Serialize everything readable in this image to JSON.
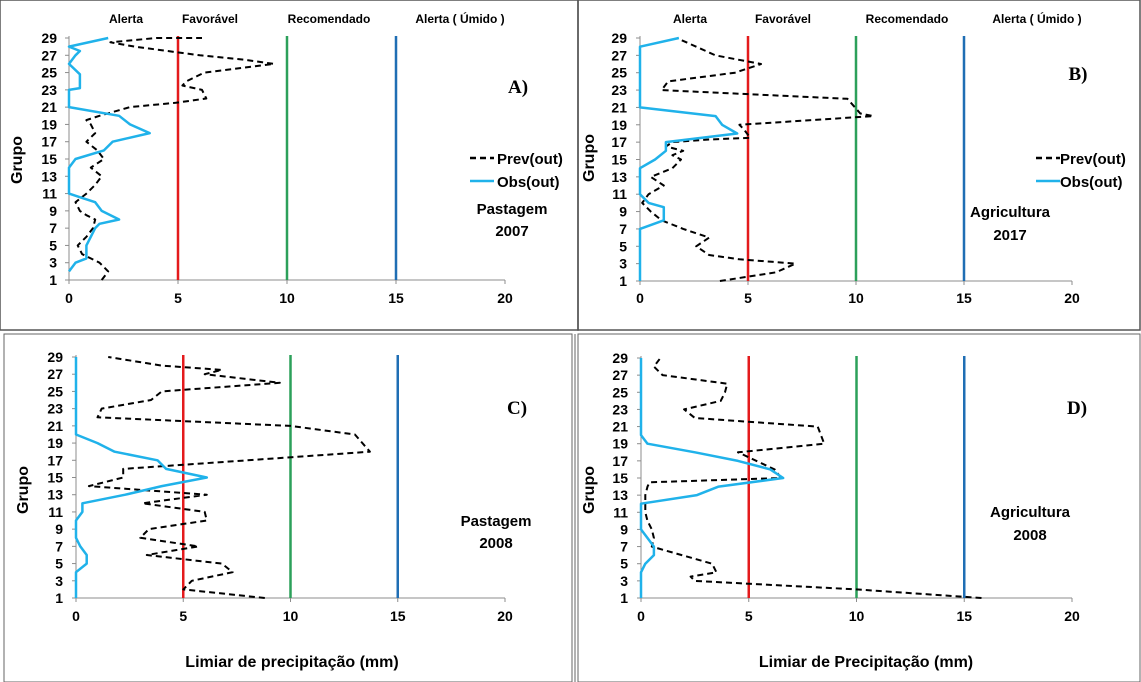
{
  "chart_data": [
    {
      "type": "line",
      "id": "A",
      "panel_label": "A)",
      "annotation": [
        "Pastagem",
        "2007"
      ],
      "ylabel": "Grupo",
      "xlim": [
        0,
        20
      ],
      "ylim": [
        1,
        29
      ],
      "x_ticks": [
        "0",
        "5",
        "10",
        "15",
        "20"
      ],
      "y_ticks": [
        "1",
        "3",
        "5",
        "7",
        "9",
        "11",
        "13",
        "15",
        "17",
        "19",
        "21",
        "23",
        "25",
        "27",
        "29"
      ],
      "thresholds": [
        {
          "label": "Alerta",
          "value": null
        },
        {
          "label": "Favorável",
          "value": 5,
          "color": "#e41a1c"
        },
        {
          "label": "Recomendado",
          "value": 10,
          "color": "#2ca05a"
        },
        {
          "label": "Alerta ( Úmido )",
          "value": 15,
          "color": "#1f6eb4"
        }
      ],
      "legend": {
        "position": "right",
        "entries": [
          "Prev(out)",
          "Obs(out)"
        ]
      },
      "series": [
        {
          "name": "Prev(out)",
          "color": "#000000",
          "dash": true,
          "x": [
            1.5,
            1.8,
            1.4,
            0.6,
            0.4,
            0.8,
            1.1,
            1.2,
            0.8,
            0.5,
            0.3,
            0.8,
            1.2,
            1.5,
            1.0,
            1.6,
            1.3,
            0.8,
            1.2,
            1.0,
            0.8,
            1.4,
            2.8,
            4.9,
            6.3,
            6.1,
            5.2,
            5.4,
            6.2,
            7.8,
            9.4,
            8.0,
            6.0,
            3.0,
            1.9,
            4.0,
            6.1
          ],
          "y": [
            1,
            2,
            3,
            4,
            5,
            6,
            7,
            8,
            8.5,
            9,
            10,
            11,
            12,
            13,
            14,
            15,
            16,
            17,
            18,
            19,
            19.5,
            20,
            21,
            21.5,
            22,
            23,
            23.5,
            24,
            25,
            25.5,
            26,
            26.5,
            27,
            28,
            28.5,
            29,
            29
          ]
        },
        {
          "name": "Obs(out)",
          "color": "#20b2ea",
          "dash": false,
          "x": [
            0,
            0.3,
            0.8,
            0.8,
            1.0,
            1.2,
            1.4,
            2.3,
            1.5,
            1.2,
            0.6,
            0,
            0,
            0,
            0.3,
            1.6,
            2.0,
            3.7,
            2.8,
            2.3,
            0,
            0,
            0.5,
            0.5,
            0,
            0.3,
            0.5,
            0,
            1.8
          ],
          "y": [
            2,
            3,
            3.5,
            5,
            6,
            7,
            7.5,
            8,
            9,
            10,
            10.5,
            11,
            13,
            14,
            15,
            16,
            17,
            18,
            19,
            20,
            21,
            23,
            23.2,
            24.8,
            26,
            27,
            27.5,
            28,
            29
          ]
        }
      ]
    },
    {
      "type": "line",
      "id": "B",
      "panel_label": "B)",
      "annotation": [
        "Agricultura",
        "2017"
      ],
      "ylabel": "Grupo",
      "xlim": [
        0,
        20
      ],
      "ylim": [
        1,
        29
      ],
      "x_ticks": [
        "0",
        "5",
        "10",
        "15",
        "20"
      ],
      "y_ticks": [
        "1",
        "3",
        "5",
        "7",
        "9",
        "11",
        "13",
        "15",
        "17",
        "19",
        "21",
        "23",
        "25",
        "27",
        "29"
      ],
      "thresholds": [
        {
          "label": "Alerta",
          "value": null
        },
        {
          "label": "Favorável",
          "value": 5,
          "color": "#e41a1c"
        },
        {
          "label": "Recomendado",
          "value": 10,
          "color": "#2ca05a"
        },
        {
          "label": "Alerta ( Úmido )",
          "value": 15,
          "color": "#1f6eb4"
        }
      ],
      "legend": {
        "position": "right",
        "entries": [
          "Prev(out)",
          "Obs(out)"
        ]
      },
      "series": [
        {
          "name": "Prev(out)",
          "color": "#000000",
          "dash": true,
          "x": [
            3.7,
            6.3,
            7.2,
            4.6,
            3.2,
            2.6,
            3.2,
            2.0,
            1.0,
            0.5,
            0.1,
            0.4,
            1.1,
            0.5,
            1.5,
            1.9,
            1.5,
            2.0,
            1.2,
            1.5,
            3.2,
            5.1,
            4.8,
            4.6,
            10.8,
            10.2,
            9.6,
            1.0,
            1.3,
            4.4,
            5.6,
            3.5,
            2.6,
            1.7
          ],
          "y": [
            1,
            2,
            3,
            3.5,
            4,
            5,
            6,
            7,
            8,
            9,
            10,
            11,
            12,
            13,
            14,
            15,
            15.5,
            16,
            16.5,
            17,
            17.3,
            17.5,
            18.5,
            19,
            20,
            20.3,
            22,
            23,
            24,
            25,
            26,
            27,
            28,
            29
          ]
        },
        {
          "name": "Obs(out)",
          "color": "#20b2ea",
          "dash": false,
          "x": [
            0,
            0,
            1.1,
            1.1,
            0.4,
            0,
            0,
            0.7,
            1.2,
            1.2,
            4.5,
            3.8,
            3.5,
            0,
            0,
            1.8
          ],
          "y": [
            1,
            7,
            8,
            9.5,
            10,
            11,
            14,
            15,
            16,
            17,
            18,
            19,
            20,
            21,
            28,
            29
          ]
        }
      ]
    },
    {
      "type": "line",
      "id": "C",
      "panel_label": "C)",
      "annotation": [
        "Pastagem",
        "2008"
      ],
      "ylabel": "Grupo",
      "xlim": [
        0,
        20
      ],
      "ylim": [
        1,
        29
      ],
      "x_ticks": [
        "0",
        "5",
        "10",
        "15",
        "20"
      ],
      "y_ticks": [
        "1",
        "3",
        "5",
        "7",
        "9",
        "11",
        "13",
        "15",
        "17",
        "19",
        "21",
        "23",
        "25",
        "27",
        "29"
      ],
      "thresholds": [],
      "legend": null,
      "series": [
        {
          "name": "Prev(out)",
          "color": "#000000",
          "dash": true,
          "x": [
            8.8,
            5.0,
            5.4,
            7.3,
            6.8,
            3.3,
            5.7,
            3.0,
            3.4,
            6.1,
            6.0,
            3.1,
            6.1,
            0.6,
            2.2,
            2.2,
            8.0,
            13.7,
            13.0,
            10.0,
            1.0,
            1.2,
            3.5,
            4.0,
            9.5,
            6.0,
            6.8,
            4.0,
            1.5
          ],
          "y": [
            1,
            2,
            3,
            4,
            5,
            6,
            7,
            8,
            9,
            10,
            11,
            12,
            13,
            14,
            15,
            16,
            17,
            18,
            20,
            21,
            22,
            23,
            24,
            25,
            26,
            27,
            27.5,
            28,
            29
          ]
        },
        {
          "name": "Obs(out)",
          "color": "#20b2ea",
          "dash": false,
          "x": [
            0,
            0,
            0.5,
            0.5,
            0.2,
            0,
            0,
            0,
            0.3,
            0.3,
            2.3,
            4.0,
            6.1,
            4.2,
            3.8,
            1.8,
            1.0,
            0,
            0
          ],
          "y": [
            1,
            4,
            5,
            6,
            7,
            8,
            9,
            10,
            11,
            12,
            13,
            14,
            15,
            16,
            17,
            18,
            19,
            20,
            29
          ]
        }
      ]
    },
    {
      "type": "line",
      "id": "D",
      "panel_label": "D)",
      "annotation": [
        "Agricultura",
        "2008"
      ],
      "ylabel": "Grupo",
      "xlim": [
        0,
        20
      ],
      "ylim": [
        1,
        29
      ],
      "x_ticks": [
        "0",
        "5",
        "10",
        "15",
        "20"
      ],
      "y_ticks": [
        "1",
        "3",
        "5",
        "7",
        "9",
        "11",
        "13",
        "15",
        "17",
        "19",
        "21",
        "23",
        "25",
        "27",
        "29"
      ],
      "thresholds": [],
      "legend": null,
      "series": [
        {
          "name": "Prev(out)",
          "color": "#000000",
          "dash": true,
          "x": [
            15.8,
            10.0,
            2.5,
            2.3,
            3.5,
            3.3,
            1.2,
            0.5,
            0.6,
            0.5,
            0.3,
            0.2,
            0.2,
            0.3,
            0.4,
            6.5,
            6.2,
            4.5,
            8.5,
            8.2,
            2.5,
            2.0,
            3.7,
            3.9,
            4.0,
            1.0,
            0.6,
            0.9
          ],
          "y": [
            1,
            2,
            3,
            3.5,
            4,
            5,
            6.5,
            7,
            8,
            9,
            10,
            11,
            13,
            14,
            14.5,
            15,
            16,
            18,
            19,
            21,
            22,
            23,
            24,
            25,
            26,
            27,
            28,
            29
          ]
        },
        {
          "name": "Obs(out)",
          "color": "#20b2ea",
          "dash": false,
          "x": [
            0,
            0,
            0.2,
            0.6,
            0.6,
            0.3,
            0,
            0,
            2.6,
            3.6,
            6.6,
            6.0,
            4.5,
            2.5,
            0.3,
            0,
            0
          ],
          "y": [
            1,
            4,
            5,
            6,
            7,
            8,
            9,
            12,
            13,
            14,
            15,
            16,
            17,
            18,
            19,
            20,
            29
          ]
        }
      ]
    }
  ],
  "xlabels": {
    "left": "Limiar de precipitação (mm)",
    "right": "Limiar de Precipitação (mm)"
  }
}
